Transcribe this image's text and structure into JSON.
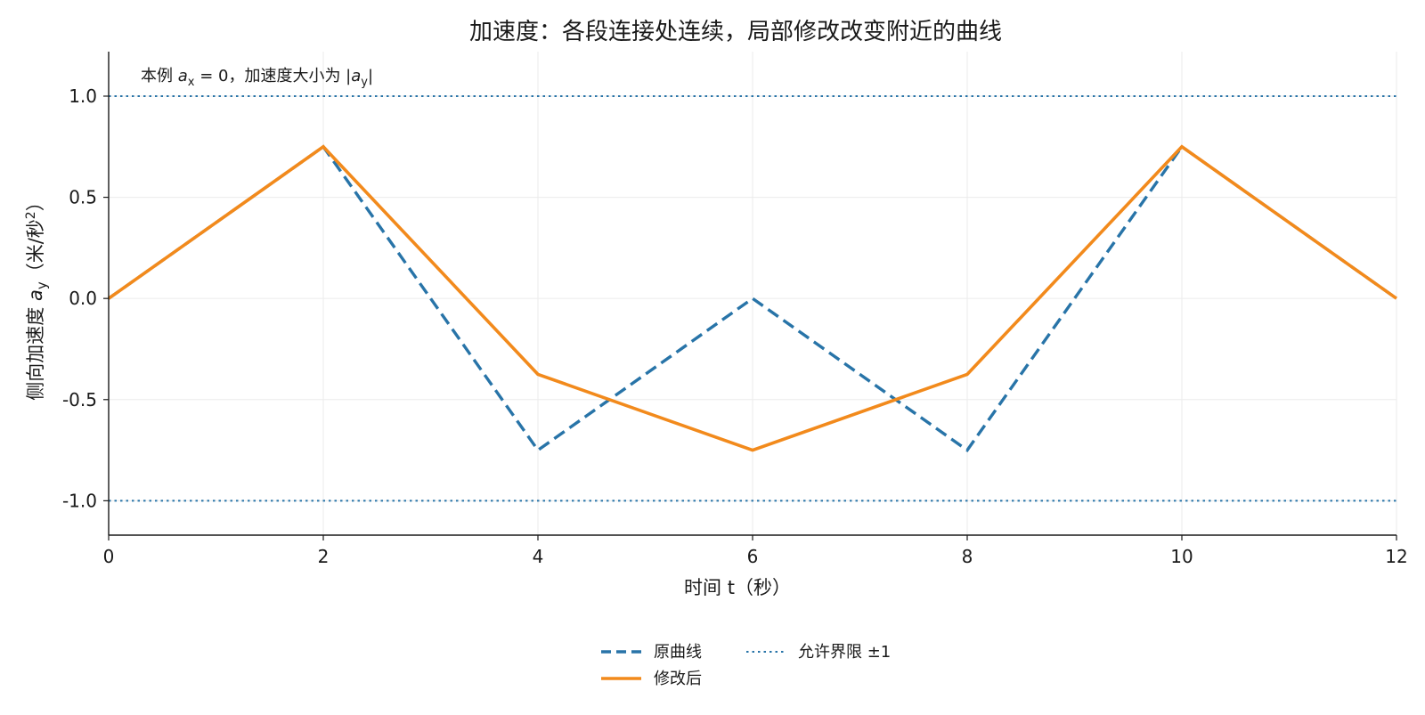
{
  "chart_data": {
    "type": "line",
    "title": "加速度：各段连接处连续，局部修改改变附近的曲线",
    "xlabel": "时间 t（秒）",
    "ylabel": "侧向加速度 a_y（米/秒²）",
    "ylabel_parts": {
      "pre": "侧向加速度 ",
      "var": "a",
      "sub": "y",
      "mid": "（米/秒",
      "sup": "2",
      "post": "）"
    },
    "xlim": [
      0,
      12
    ],
    "ylim": [
      -1.17,
      1.22
    ],
    "xticks": [
      0,
      2,
      4,
      6,
      8,
      10,
      12
    ],
    "xtick_labels": [
      "0",
      "2",
      "4",
      "6",
      "8",
      "10",
      "12"
    ],
    "yticks": [
      -1.0,
      -0.5,
      0.0,
      0.5,
      1.0
    ],
    "ytick_labels": [
      "-1.0",
      "-0.5",
      "0.0",
      "0.5",
      "1.0"
    ],
    "grid": true,
    "legend_placement": "bottom-center",
    "annotation": {
      "text": "本例 a_x = 0，加速度大小为 |a_y|",
      "parts": {
        "pre": "本例 ",
        "var1": "a",
        "sub1": "x",
        "eq": " = 0，加速度大小为 |",
        "var2": "a",
        "sub2": "y",
        "post": "|"
      }
    },
    "series": [
      {
        "name": "原曲线",
        "color": "#2874a8",
        "style": "dashed",
        "x": [
          0,
          2,
          4,
          6,
          8,
          10,
          12
        ],
        "y": [
          0,
          0.75,
          -0.75,
          0,
          -0.75,
          0.75,
          0
        ]
      },
      {
        "name": "修改后",
        "color": "#f28a1c",
        "style": "solid",
        "x": [
          0,
          2,
          4,
          6,
          8,
          10,
          12
        ],
        "y": [
          0,
          0.75,
          -0.375,
          -0.75,
          -0.375,
          0.75,
          0
        ]
      }
    ],
    "reference_lines": [
      {
        "name": "允许界限 ±1",
        "color": "#2874a8",
        "style": "dotted",
        "values": [
          1.0,
          -1.0
        ]
      }
    ]
  }
}
